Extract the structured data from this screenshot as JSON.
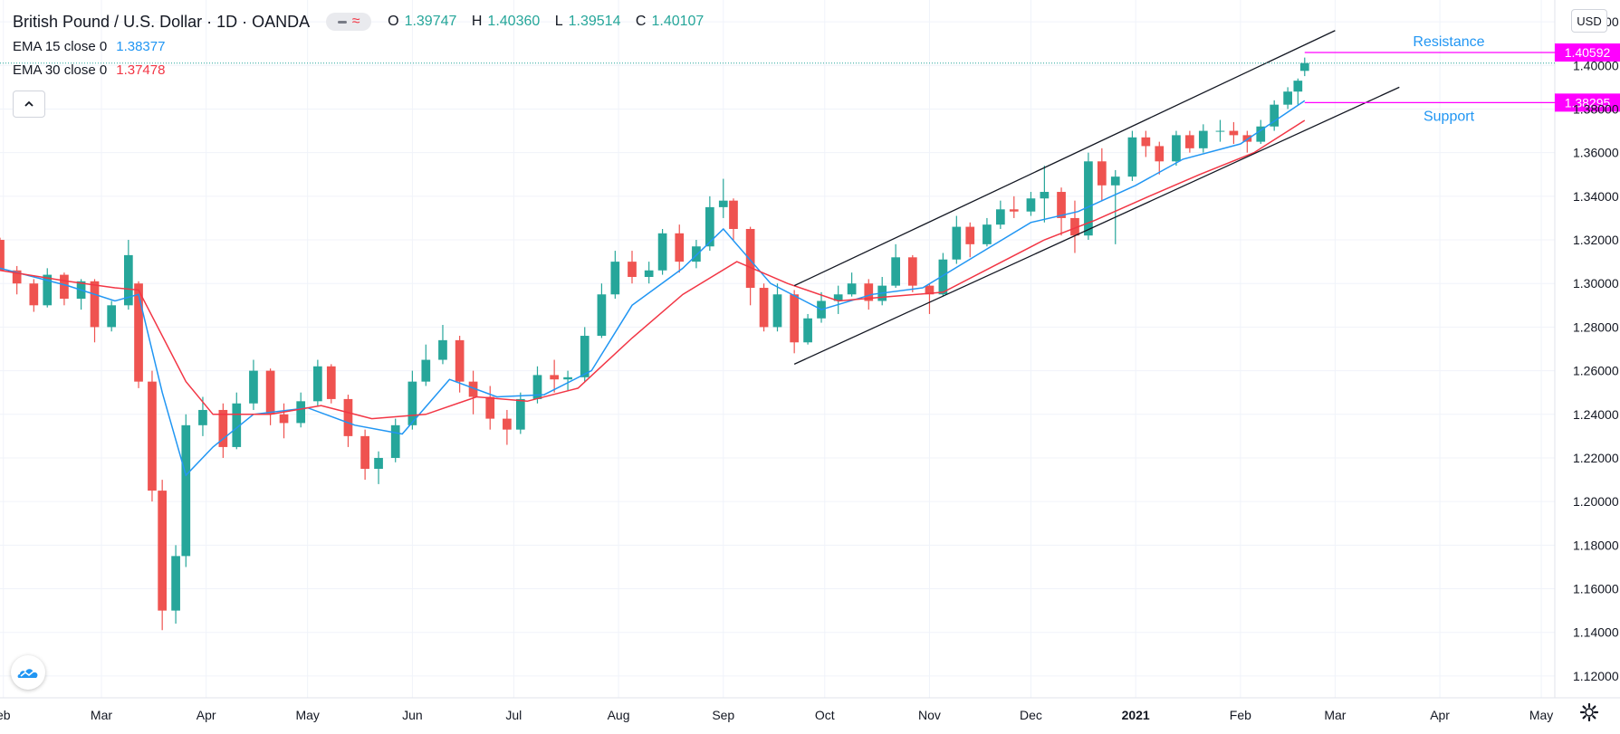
{
  "header": {
    "title": "British Pound / U.S. Dollar · 1D · OANDA",
    "ohlc": [
      {
        "k": "O",
        "v": "1.39747"
      },
      {
        "k": "H",
        "v": "1.40360"
      },
      {
        "k": "L",
        "v": "1.39514"
      },
      {
        "k": "C",
        "v": "1.40107"
      }
    ],
    "ema15_label": "EMA 15 close 0",
    "ema15_value": "1.38377",
    "ema30_label": "EMA 30 close 0",
    "ema30_value": "1.37478",
    "currency": "USD"
  },
  "icons": {
    "collapse": "chevron-up-icon",
    "logo": "cloud-logo-icon",
    "settings": "gear-icon"
  },
  "colors": {
    "up": "#26a69a",
    "down": "#ef5350",
    "ema15": "#2196f3",
    "ema30": "#f23645",
    "marker": "#ff00ff",
    "annotation_text": "#2196f3",
    "trendline": "#131722",
    "grid": "#f0f3fa",
    "axis_text": "#131722"
  },
  "chart_data": {
    "type": "candlestick",
    "title": "British Pound / U.S. Dollar",
    "xlabel": "",
    "ylabel": "",
    "ylim": [
      1.11,
      1.43
    ],
    "y_ticks": [
      "1.42000",
      "1.40000",
      "1.38000",
      "1.36000",
      "1.34000",
      "1.32000",
      "1.30000",
      "1.28000",
      "1.26000",
      "1.24000",
      "1.22000",
      "1.20000",
      "1.18000",
      "1.16000",
      "1.14000",
      "1.12000"
    ],
    "x_range": [
      "2020-01-31",
      "2021-05-05"
    ],
    "x_ticks": [
      {
        "date": "2020-02-01",
        "label": "eb",
        "bold": false
      },
      {
        "date": "2020-03-01",
        "label": "Mar",
        "bold": false
      },
      {
        "date": "2020-04-01",
        "label": "Apr",
        "bold": false
      },
      {
        "date": "2020-05-01",
        "label": "May",
        "bold": false
      },
      {
        "date": "2020-06-01",
        "label": "Jun",
        "bold": false
      },
      {
        "date": "2020-07-01",
        "label": "Jul",
        "bold": false
      },
      {
        "date": "2020-08-01",
        "label": "Aug",
        "bold": false
      },
      {
        "date": "2020-09-01",
        "label": "Sep",
        "bold": false
      },
      {
        "date": "2020-10-01",
        "label": "Oct",
        "bold": false
      },
      {
        "date": "2020-11-01",
        "label": "Nov",
        "bold": false
      },
      {
        "date": "2020-12-01",
        "label": "Dec",
        "bold": false
      },
      {
        "date": "2021-01-01",
        "label": "2021",
        "bold": true
      },
      {
        "date": "2021-02-01",
        "label": "Feb",
        "bold": false
      },
      {
        "date": "2021-03-01",
        "label": "Mar",
        "bold": false
      },
      {
        "date": "2021-04-01",
        "label": "Apr",
        "bold": false
      },
      {
        "date": "2021-05-01",
        "label": "May",
        "bold": false
      }
    ],
    "series": [
      {
        "name": "EMA 15 close 0",
        "color": "#2196f3"
      },
      {
        "name": "EMA 30 close 0",
        "color": "#f23645"
      }
    ],
    "candles": [
      {
        "date": "2020-01-31",
        "o": 1.32,
        "h": 1.321,
        "l": 1.306,
        "c": 1.306
      },
      {
        "date": "2020-02-05",
        "o": 1.306,
        "h": 1.308,
        "l": 1.295,
        "c": 1.3
      },
      {
        "date": "2020-02-10",
        "o": 1.3,
        "h": 1.302,
        "l": 1.287,
        "c": 1.29
      },
      {
        "date": "2020-02-14",
        "o": 1.29,
        "h": 1.307,
        "l": 1.289,
        "c": 1.304
      },
      {
        "date": "2020-02-19",
        "o": 1.304,
        "h": 1.305,
        "l": 1.29,
        "c": 1.293
      },
      {
        "date": "2020-02-24",
        "o": 1.293,
        "h": 1.302,
        "l": 1.288,
        "c": 1.301
      },
      {
        "date": "2020-02-28",
        "o": 1.301,
        "h": 1.302,
        "l": 1.273,
        "c": 1.28
      },
      {
        "date": "2020-03-04",
        "o": 1.28,
        "h": 1.292,
        "l": 1.278,
        "c": 1.29
      },
      {
        "date": "2020-03-09",
        "o": 1.29,
        "h": 1.32,
        "l": 1.288,
        "c": 1.313
      },
      {
        "date": "2020-03-12",
        "o": 1.3,
        "h": 1.301,
        "l": 1.252,
        "c": 1.255
      },
      {
        "date": "2020-03-16",
        "o": 1.255,
        "h": 1.26,
        "l": 1.2,
        "c": 1.205
      },
      {
        "date": "2020-03-19",
        "o": 1.205,
        "h": 1.21,
        "l": 1.141,
        "c": 1.15
      },
      {
        "date": "2020-03-23",
        "o": 1.15,
        "h": 1.18,
        "l": 1.144,
        "c": 1.175
      },
      {
        "date": "2020-03-26",
        "o": 1.175,
        "h": 1.24,
        "l": 1.17,
        "c": 1.235
      },
      {
        "date": "2020-03-31",
        "o": 1.235,
        "h": 1.248,
        "l": 1.23,
        "c": 1.242
      },
      {
        "date": "2020-04-06",
        "o": 1.242,
        "h": 1.245,
        "l": 1.22,
        "c": 1.225
      },
      {
        "date": "2020-04-10",
        "o": 1.225,
        "h": 1.25,
        "l": 1.224,
        "c": 1.245
      },
      {
        "date": "2020-04-15",
        "o": 1.245,
        "h": 1.265,
        "l": 1.242,
        "c": 1.26
      },
      {
        "date": "2020-04-20",
        "o": 1.26,
        "h": 1.261,
        "l": 1.235,
        "c": 1.24
      },
      {
        "date": "2020-04-24",
        "o": 1.24,
        "h": 1.245,
        "l": 1.229,
        "c": 1.236
      },
      {
        "date": "2020-04-29",
        "o": 1.236,
        "h": 1.25,
        "l": 1.234,
        "c": 1.246
      },
      {
        "date": "2020-05-04",
        "o": 1.246,
        "h": 1.265,
        "l": 1.244,
        "c": 1.262
      },
      {
        "date": "2020-05-08",
        "o": 1.262,
        "h": 1.263,
        "l": 1.245,
        "c": 1.247
      },
      {
        "date": "2020-05-13",
        "o": 1.247,
        "h": 1.249,
        "l": 1.225,
        "c": 1.23
      },
      {
        "date": "2020-05-18",
        "o": 1.23,
        "h": 1.233,
        "l": 1.21,
        "c": 1.215
      },
      {
        "date": "2020-05-22",
        "o": 1.215,
        "h": 1.223,
        "l": 1.208,
        "c": 1.22
      },
      {
        "date": "2020-05-27",
        "o": 1.22,
        "h": 1.238,
        "l": 1.218,
        "c": 1.235
      },
      {
        "date": "2020-06-01",
        "o": 1.235,
        "h": 1.26,
        "l": 1.233,
        "c": 1.255
      },
      {
        "date": "2020-06-05",
        "o": 1.255,
        "h": 1.272,
        "l": 1.253,
        "c": 1.265
      },
      {
        "date": "2020-06-10",
        "o": 1.265,
        "h": 1.281,
        "l": 1.263,
        "c": 1.274
      },
      {
        "date": "2020-06-15",
        "o": 1.274,
        "h": 1.276,
        "l": 1.25,
        "c": 1.255
      },
      {
        "date": "2020-06-19",
        "o": 1.255,
        "h": 1.26,
        "l": 1.24,
        "c": 1.248
      },
      {
        "date": "2020-06-24",
        "o": 1.248,
        "h": 1.253,
        "l": 1.233,
        "c": 1.238
      },
      {
        "date": "2020-06-29",
        "o": 1.238,
        "h": 1.242,
        "l": 1.226,
        "c": 1.233
      },
      {
        "date": "2020-07-03",
        "o": 1.233,
        "h": 1.25,
        "l": 1.231,
        "c": 1.247
      },
      {
        "date": "2020-07-08",
        "o": 1.247,
        "h": 1.262,
        "l": 1.245,
        "c": 1.258
      },
      {
        "date": "2020-07-13",
        "o": 1.258,
        "h": 1.265,
        "l": 1.25,
        "c": 1.256
      },
      {
        "date": "2020-07-17",
        "o": 1.256,
        "h": 1.26,
        "l": 1.251,
        "c": 1.257
      },
      {
        "date": "2020-07-22",
        "o": 1.257,
        "h": 1.28,
        "l": 1.255,
        "c": 1.276
      },
      {
        "date": "2020-07-27",
        "o": 1.276,
        "h": 1.3,
        "l": 1.275,
        "c": 1.295
      },
      {
        "date": "2020-07-31",
        "o": 1.295,
        "h": 1.315,
        "l": 1.293,
        "c": 1.31
      },
      {
        "date": "2020-08-05",
        "o": 1.31,
        "h": 1.315,
        "l": 1.3,
        "c": 1.303
      },
      {
        "date": "2020-08-10",
        "o": 1.303,
        "h": 1.31,
        "l": 1.3,
        "c": 1.306
      },
      {
        "date": "2020-08-14",
        "o": 1.306,
        "h": 1.325,
        "l": 1.304,
        "c": 1.323
      },
      {
        "date": "2020-08-19",
        "o": 1.323,
        "h": 1.327,
        "l": 1.305,
        "c": 1.31
      },
      {
        "date": "2020-08-24",
        "o": 1.31,
        "h": 1.32,
        "l": 1.307,
        "c": 1.317
      },
      {
        "date": "2020-08-28",
        "o": 1.317,
        "h": 1.34,
        "l": 1.315,
        "c": 1.335
      },
      {
        "date": "2020-09-01",
        "o": 1.335,
        "h": 1.348,
        "l": 1.33,
        "c": 1.338
      },
      {
        "date": "2020-09-04",
        "o": 1.338,
        "h": 1.339,
        "l": 1.32,
        "c": 1.325
      },
      {
        "date": "2020-09-09",
        "o": 1.325,
        "h": 1.326,
        "l": 1.29,
        "c": 1.298
      },
      {
        "date": "2020-09-13",
        "o": 1.298,
        "h": 1.3,
        "l": 1.278,
        "c": 1.28
      },
      {
        "date": "2020-09-17",
        "o": 1.28,
        "h": 1.3,
        "l": 1.278,
        "c": 1.295
      },
      {
        "date": "2020-09-22",
        "o": 1.295,
        "h": 1.297,
        "l": 1.268,
        "c": 1.273
      },
      {
        "date": "2020-09-26",
        "o": 1.273,
        "h": 1.286,
        "l": 1.272,
        "c": 1.284
      },
      {
        "date": "2020-09-30",
        "o": 1.284,
        "h": 1.296,
        "l": 1.282,
        "c": 1.292
      },
      {
        "date": "2020-10-05",
        "o": 1.292,
        "h": 1.299,
        "l": 1.286,
        "c": 1.295
      },
      {
        "date": "2020-10-09",
        "o": 1.295,
        "h": 1.305,
        "l": 1.294,
        "c": 1.3
      },
      {
        "date": "2020-10-14",
        "o": 1.3,
        "h": 1.302,
        "l": 1.288,
        "c": 1.292
      },
      {
        "date": "2020-10-18",
        "o": 1.292,
        "h": 1.303,
        "l": 1.29,
        "c": 1.299
      },
      {
        "date": "2020-10-22",
        "o": 1.299,
        "h": 1.318,
        "l": 1.298,
        "c": 1.312
      },
      {
        "date": "2020-10-27",
        "o": 1.312,
        "h": 1.313,
        "l": 1.296,
        "c": 1.299
      },
      {
        "date": "2020-11-01",
        "o": 1.299,
        "h": 1.3,
        "l": 1.286,
        "c": 1.295
      },
      {
        "date": "2020-11-05",
        "o": 1.295,
        "h": 1.314,
        "l": 1.294,
        "c": 1.311
      },
      {
        "date": "2020-11-09",
        "o": 1.311,
        "h": 1.331,
        "l": 1.309,
        "c": 1.326
      },
      {
        "date": "2020-11-13",
        "o": 1.326,
        "h": 1.328,
        "l": 1.312,
        "c": 1.318
      },
      {
        "date": "2020-11-18",
        "o": 1.318,
        "h": 1.33,
        "l": 1.317,
        "c": 1.327
      },
      {
        "date": "2020-11-22",
        "o": 1.327,
        "h": 1.338,
        "l": 1.325,
        "c": 1.334
      },
      {
        "date": "2020-11-26",
        "o": 1.334,
        "h": 1.34,
        "l": 1.33,
        "c": 1.333
      },
      {
        "date": "2020-12-01",
        "o": 1.333,
        "h": 1.342,
        "l": 1.331,
        "c": 1.339
      },
      {
        "date": "2020-12-05",
        "o": 1.339,
        "h": 1.354,
        "l": 1.328,
        "c": 1.342
      },
      {
        "date": "2020-12-10",
        "o": 1.342,
        "h": 1.344,
        "l": 1.322,
        "c": 1.33
      },
      {
        "date": "2020-12-14",
        "o": 1.33,
        "h": 1.338,
        "l": 1.314,
        "c": 1.322
      },
      {
        "date": "2020-12-18",
        "o": 1.322,
        "h": 1.36,
        "l": 1.32,
        "c": 1.356
      },
      {
        "date": "2020-12-22",
        "o": 1.356,
        "h": 1.362,
        "l": 1.338,
        "c": 1.345
      },
      {
        "date": "2020-12-26",
        "o": 1.345,
        "h": 1.352,
        "l": 1.318,
        "c": 1.349
      },
      {
        "date": "2020-12-31",
        "o": 1.349,
        "h": 1.37,
        "l": 1.347,
        "c": 1.367
      },
      {
        "date": "2021-01-04",
        "o": 1.367,
        "h": 1.37,
        "l": 1.358,
        "c": 1.363
      },
      {
        "date": "2021-01-08",
        "o": 1.363,
        "h": 1.365,
        "l": 1.35,
        "c": 1.356
      },
      {
        "date": "2021-01-13",
        "o": 1.356,
        "h": 1.37,
        "l": 1.354,
        "c": 1.368
      },
      {
        "date": "2021-01-17",
        "o": 1.368,
        "h": 1.37,
        "l": 1.36,
        "c": 1.362
      },
      {
        "date": "2021-01-21",
        "o": 1.362,
        "h": 1.373,
        "l": 1.36,
        "c": 1.37
      },
      {
        "date": "2021-01-26",
        "o": 1.37,
        "h": 1.375,
        "l": 1.365,
        "c": 1.37
      },
      {
        "date": "2021-01-30",
        "o": 1.37,
        "h": 1.374,
        "l": 1.364,
        "c": 1.368
      },
      {
        "date": "2021-02-03",
        "o": 1.368,
        "h": 1.37,
        "l": 1.36,
        "c": 1.365
      },
      {
        "date": "2021-02-07",
        "o": 1.365,
        "h": 1.375,
        "l": 1.364,
        "c": 1.372
      },
      {
        "date": "2021-02-11",
        "o": 1.372,
        "h": 1.384,
        "l": 1.37,
        "c": 1.382
      },
      {
        "date": "2021-02-15",
        "o": 1.382,
        "h": 1.39,
        "l": 1.38,
        "c": 1.388
      },
      {
        "date": "2021-02-18",
        "o": 1.388,
        "h": 1.394,
        "l": 1.382,
        "c": 1.393
      },
      {
        "date": "2021-02-20",
        "o": 1.3975,
        "h": 1.4036,
        "l": 1.3951,
        "c": 1.4011
      }
    ],
    "ema15": [
      {
        "date": "2020-01-31",
        "v": 1.307
      },
      {
        "date": "2020-02-20",
        "v": 1.299
      },
      {
        "date": "2020-03-05",
        "v": 1.292
      },
      {
        "date": "2020-03-12",
        "v": 1.295
      },
      {
        "date": "2020-03-19",
        "v": 1.25
      },
      {
        "date": "2020-03-26",
        "v": 1.212
      },
      {
        "date": "2020-04-03",
        "v": 1.225
      },
      {
        "date": "2020-04-15",
        "v": 1.24
      },
      {
        "date": "2020-05-01",
        "v": 1.243
      },
      {
        "date": "2020-05-15",
        "v": 1.235
      },
      {
        "date": "2020-05-29",
        "v": 1.231
      },
      {
        "date": "2020-06-12",
        "v": 1.256
      },
      {
        "date": "2020-06-26",
        "v": 1.248
      },
      {
        "date": "2020-07-10",
        "v": 1.249
      },
      {
        "date": "2020-07-24",
        "v": 1.26
      },
      {
        "date": "2020-08-05",
        "v": 1.29
      },
      {
        "date": "2020-08-20",
        "v": 1.307
      },
      {
        "date": "2020-09-01",
        "v": 1.325
      },
      {
        "date": "2020-09-15",
        "v": 1.3
      },
      {
        "date": "2020-09-30",
        "v": 1.288
      },
      {
        "date": "2020-10-15",
        "v": 1.295
      },
      {
        "date": "2020-10-30",
        "v": 1.298
      },
      {
        "date": "2020-11-15",
        "v": 1.313
      },
      {
        "date": "2020-12-01",
        "v": 1.328
      },
      {
        "date": "2020-12-15",
        "v": 1.333
      },
      {
        "date": "2021-01-01",
        "v": 1.345
      },
      {
        "date": "2021-01-15",
        "v": 1.357
      },
      {
        "date": "2021-02-01",
        "v": 1.364
      },
      {
        "date": "2021-02-20",
        "v": 1.3838
      }
    ],
    "ema30": [
      {
        "date": "2020-01-31",
        "v": 1.306
      },
      {
        "date": "2020-02-20",
        "v": 1.301
      },
      {
        "date": "2020-03-05",
        "v": 1.298
      },
      {
        "date": "2020-03-12",
        "v": 1.297
      },
      {
        "date": "2020-03-26",
        "v": 1.255
      },
      {
        "date": "2020-04-03",
        "v": 1.24
      },
      {
        "date": "2020-04-20",
        "v": 1.24
      },
      {
        "date": "2020-05-05",
        "v": 1.244
      },
      {
        "date": "2020-05-20",
        "v": 1.238
      },
      {
        "date": "2020-06-05",
        "v": 1.24
      },
      {
        "date": "2020-06-20",
        "v": 1.248
      },
      {
        "date": "2020-07-05",
        "v": 1.246
      },
      {
        "date": "2020-07-20",
        "v": 1.252
      },
      {
        "date": "2020-08-05",
        "v": 1.275
      },
      {
        "date": "2020-08-20",
        "v": 1.295
      },
      {
        "date": "2020-09-05",
        "v": 1.31
      },
      {
        "date": "2020-09-20",
        "v": 1.3
      },
      {
        "date": "2020-10-05",
        "v": 1.292
      },
      {
        "date": "2020-10-20",
        "v": 1.294
      },
      {
        "date": "2020-11-05",
        "v": 1.296
      },
      {
        "date": "2020-11-20",
        "v": 1.308
      },
      {
        "date": "2020-12-05",
        "v": 1.32
      },
      {
        "date": "2020-12-20",
        "v": 1.329
      },
      {
        "date": "2021-01-05",
        "v": 1.34
      },
      {
        "date": "2021-01-20",
        "v": 1.35
      },
      {
        "date": "2021-02-05",
        "v": 1.36
      },
      {
        "date": "2021-02-20",
        "v": 1.3748
      }
    ],
    "trend_channel": {
      "upper": [
        {
          "date": "2020-09-22",
          "v": 1.299
        },
        {
          "date": "2021-03-01",
          "v": 1.416
        }
      ],
      "lower": [
        {
          "date": "2020-09-22",
          "v": 1.263
        },
        {
          "date": "2021-03-20",
          "v": 1.39
        }
      ]
    },
    "levels": [
      {
        "name": "Resistance",
        "value": 1.40592,
        "label": "1.40592",
        "from": "2021-02-20"
      },
      {
        "name": "Support",
        "value": 1.38295,
        "label": "1.38295",
        "from": "2021-02-20"
      }
    ],
    "last_price": 1.40107
  }
}
